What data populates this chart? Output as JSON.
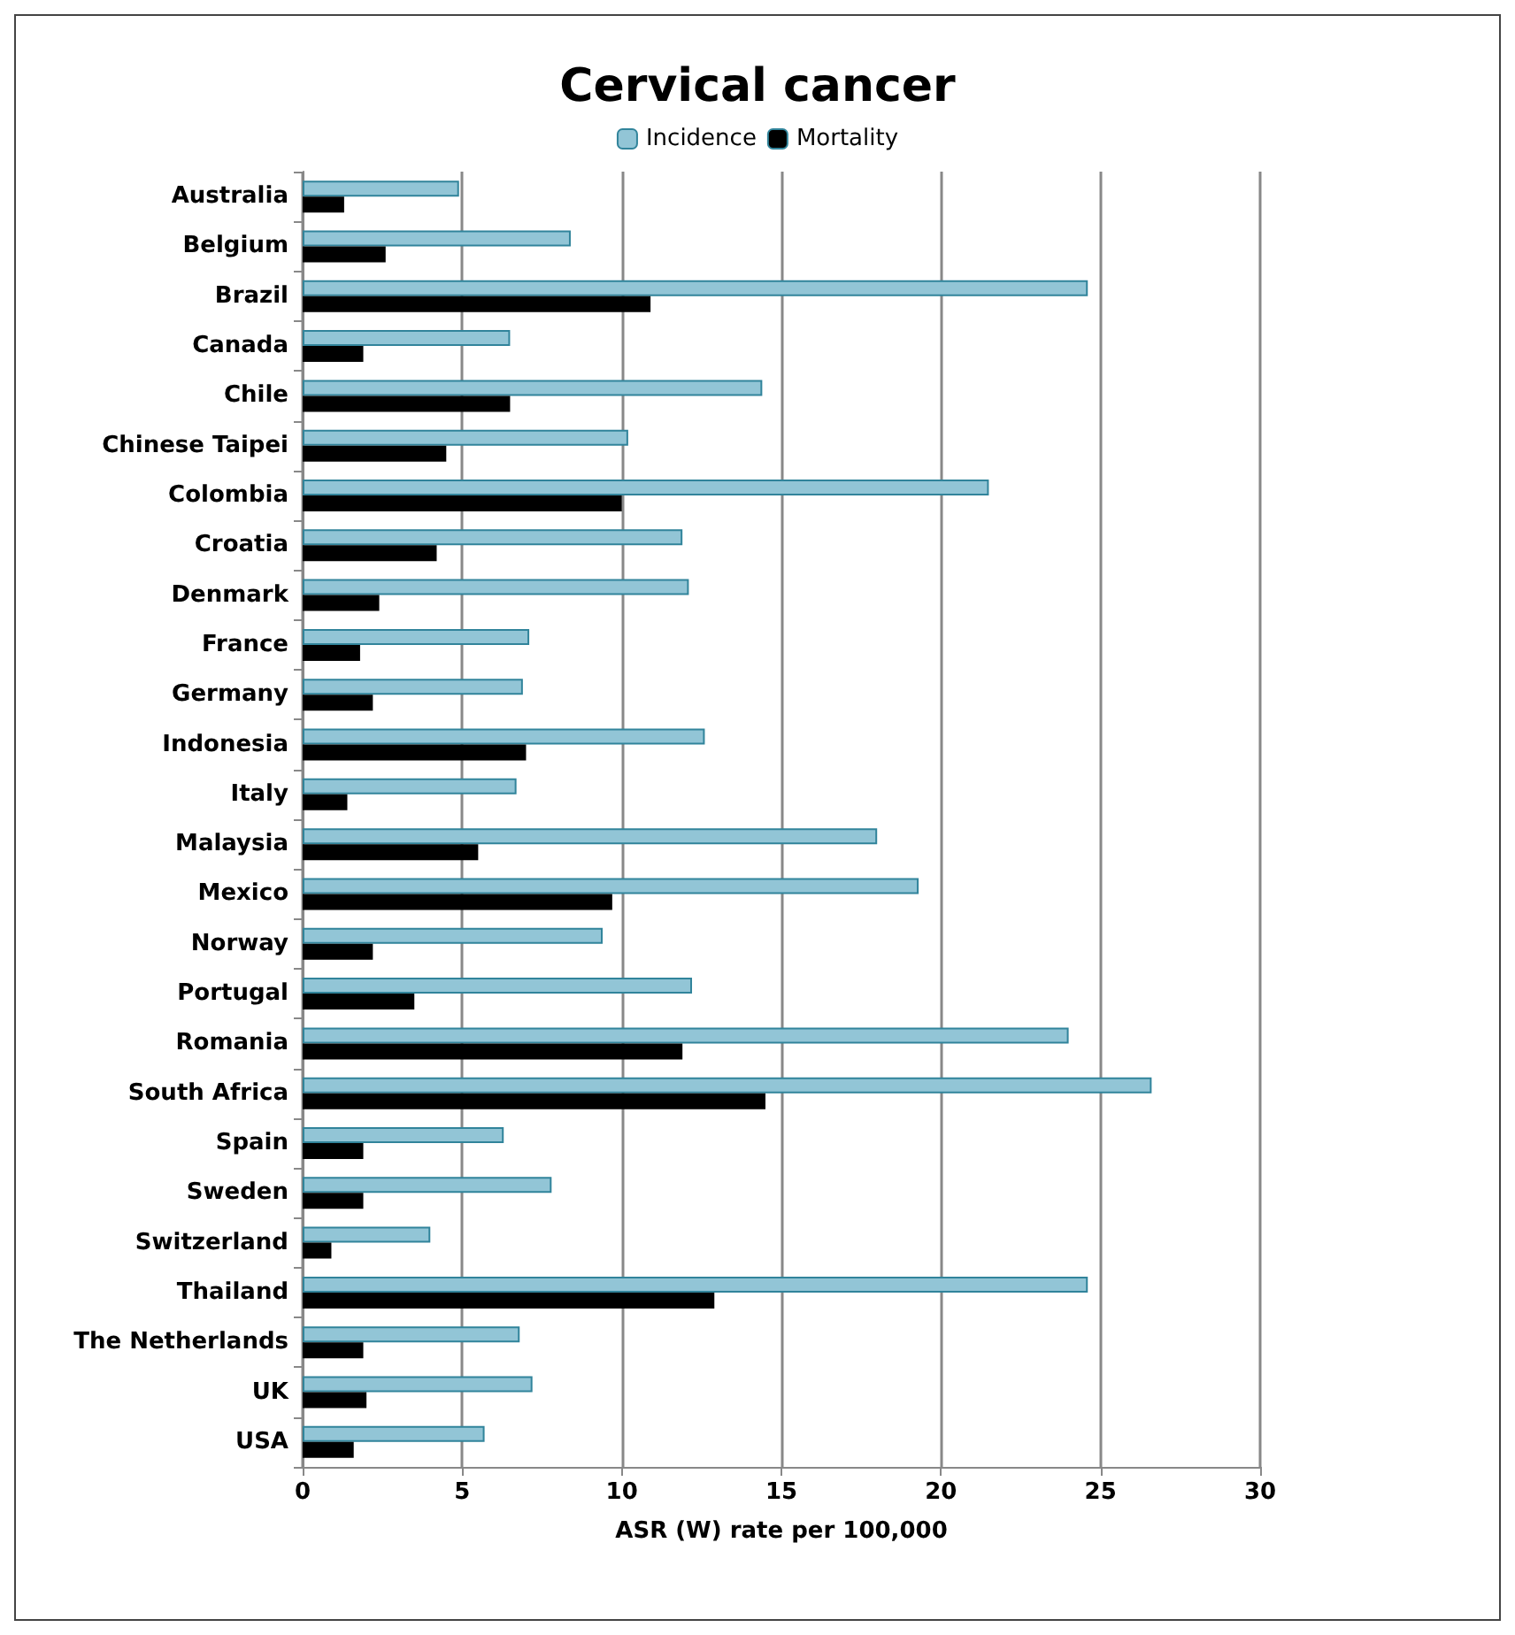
{
  "chart_data": {
    "type": "bar",
    "orientation": "horizontal",
    "title": "Cervical cancer",
    "xlabel": "ASR (W) rate per 100,000",
    "categories": [
      "Australia",
      "Belgium",
      "Brazil",
      "Canada",
      "Chile",
      "Chinese Taipei",
      "Colombia",
      "Croatia",
      "Denmark",
      "France",
      "Germany",
      "Indonesia",
      "Italy",
      "Malaysia",
      "Mexico",
      "Norway",
      "Portugal",
      "Romania",
      "South Africa",
      "Spain",
      "Sweden",
      "Switzerland",
      "Thailand",
      "The Netherlands",
      "UK",
      "USA"
    ],
    "series": [
      {
        "name": "Incidence",
        "color": "#92c5d6",
        "values": [
          4.9,
          8.4,
          24.6,
          6.5,
          14.4,
          10.2,
          21.5,
          11.9,
          12.1,
          7.1,
          6.9,
          12.6,
          6.7,
          18.0,
          19.3,
          9.4,
          12.2,
          24.0,
          26.6,
          6.3,
          7.8,
          4.0,
          24.6,
          6.8,
          7.2,
          5.7
        ]
      },
      {
        "name": "Mortality",
        "color": "#000000",
        "values": [
          1.3,
          2.6,
          10.9,
          1.9,
          6.5,
          4.5,
          10.0,
          4.2,
          2.4,
          1.8,
          2.2,
          7.0,
          1.4,
          5.5,
          9.7,
          2.2,
          3.5,
          11.9,
          14.5,
          1.9,
          1.9,
          0.9,
          12.9,
          1.9,
          2.0,
          1.6
        ]
      }
    ],
    "xlim": [
      0,
      30
    ],
    "xticks": [
      0,
      5,
      10,
      15,
      20,
      25,
      30
    ],
    "grid": "x",
    "legend": "top"
  }
}
